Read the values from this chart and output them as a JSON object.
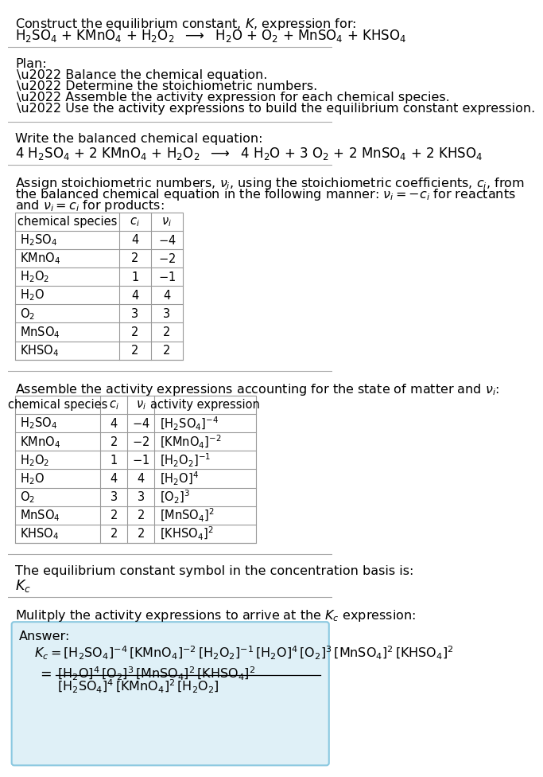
{
  "bg_color": "#ffffff",
  "text_color": "#000000",
  "title_line1": "Construct the equilibrium constant, $K$, expression for:",
  "title_line2": "$\\mathrm{H_2SO_4}$ + $\\mathrm{KMnO_4}$ + $\\mathrm{H_2O_2}$  $\\longrightarrow$  $\\mathrm{H_2O}$ + $\\mathrm{O_2}$ + $\\mathrm{MnSO_4}$ + $\\mathrm{KHSO_4}$",
  "plan_header": "Plan:",
  "plan_items": [
    "\\u2022 Balance the chemical equation.",
    "\\u2022 Determine the stoichiometric numbers.",
    "\\u2022 Assemble the activity expression for each chemical species.",
    "\\u2022 Use the activity expressions to build the equilibrium constant expression."
  ],
  "balanced_header": "Write the balanced chemical equation:",
  "balanced_eq": "$4\\ \\mathrm{H_2SO_4}$ + $2\\ \\mathrm{KMnO_4}$ + $\\mathrm{H_2O_2}$  $\\longrightarrow$  $4\\ \\mathrm{H_2O}$ + $3\\ \\mathrm{O_2}$ + $2\\ \\mathrm{MnSO_4}$ + $2\\ \\mathrm{KHSO_4}$",
  "stoich_header_lines": [
    "Assign stoichiometric numbers, $\\nu_i$, using the stoichiometric coefficients, $c_i$, from",
    "the balanced chemical equation in the following manner: $\\nu_i = -c_i$ for reactants",
    "and $\\nu_i = c_i$ for products:"
  ],
  "table1_headers": [
    "chemical species",
    "$c_i$",
    "$\\nu_i$"
  ],
  "table1_data": [
    [
      "$\\mathrm{H_2SO_4}$",
      "4",
      "$-4$"
    ],
    [
      "$\\mathrm{KMnO_4}$",
      "2",
      "$-2$"
    ],
    [
      "$\\mathrm{H_2O_2}$",
      "1",
      "$-1$"
    ],
    [
      "$\\mathrm{H_2O}$",
      "4",
      "4"
    ],
    [
      "$\\mathrm{O_2}$",
      "3",
      "3"
    ],
    [
      "$\\mathrm{MnSO_4}$",
      "2",
      "2"
    ],
    [
      "$\\mathrm{KHSO_4}$",
      "2",
      "2"
    ]
  ],
  "activity_header": "Assemble the activity expressions accounting for the state of matter and $\\nu_i$:",
  "table2_headers": [
    "chemical species",
    "$c_i$",
    "$\\nu_i$",
    "activity expression"
  ],
  "table2_data": [
    [
      "$\\mathrm{H_2SO_4}$",
      "4",
      "$-4$",
      "$[\\mathrm{H_2SO_4}]^{-4}$"
    ],
    [
      "$\\mathrm{KMnO_4}$",
      "2",
      "$-2$",
      "$[\\mathrm{KMnO_4}]^{-2}$"
    ],
    [
      "$\\mathrm{H_2O_2}$",
      "1",
      "$-1$",
      "$[\\mathrm{H_2O_2}]^{-1}$"
    ],
    [
      "$\\mathrm{H_2O}$",
      "4",
      "4",
      "$[\\mathrm{H_2O}]^{4}$"
    ],
    [
      "$\\mathrm{O_2}$",
      "3",
      "3",
      "$[\\mathrm{O_2}]^{3}$"
    ],
    [
      "$\\mathrm{MnSO_4}$",
      "2",
      "2",
      "$[\\mathrm{MnSO_4}]^{2}$"
    ],
    [
      "$\\mathrm{KHSO_4}$",
      "2",
      "2",
      "$[\\mathrm{KHSO_4}]^{2}$"
    ]
  ],
  "kc_text": "The equilibrium constant symbol in the concentration basis is:",
  "kc_symbol": "$K_c$",
  "multiply_text": "Mulitply the activity expressions to arrive at the $K_c$ expression:",
  "answer_box_color": "#dff0f7",
  "answer_box_border": "#8ac8e0",
  "answer_label": "Answer:",
  "table_border_color": "#999999",
  "sep_line_color": "#aaaaaa"
}
